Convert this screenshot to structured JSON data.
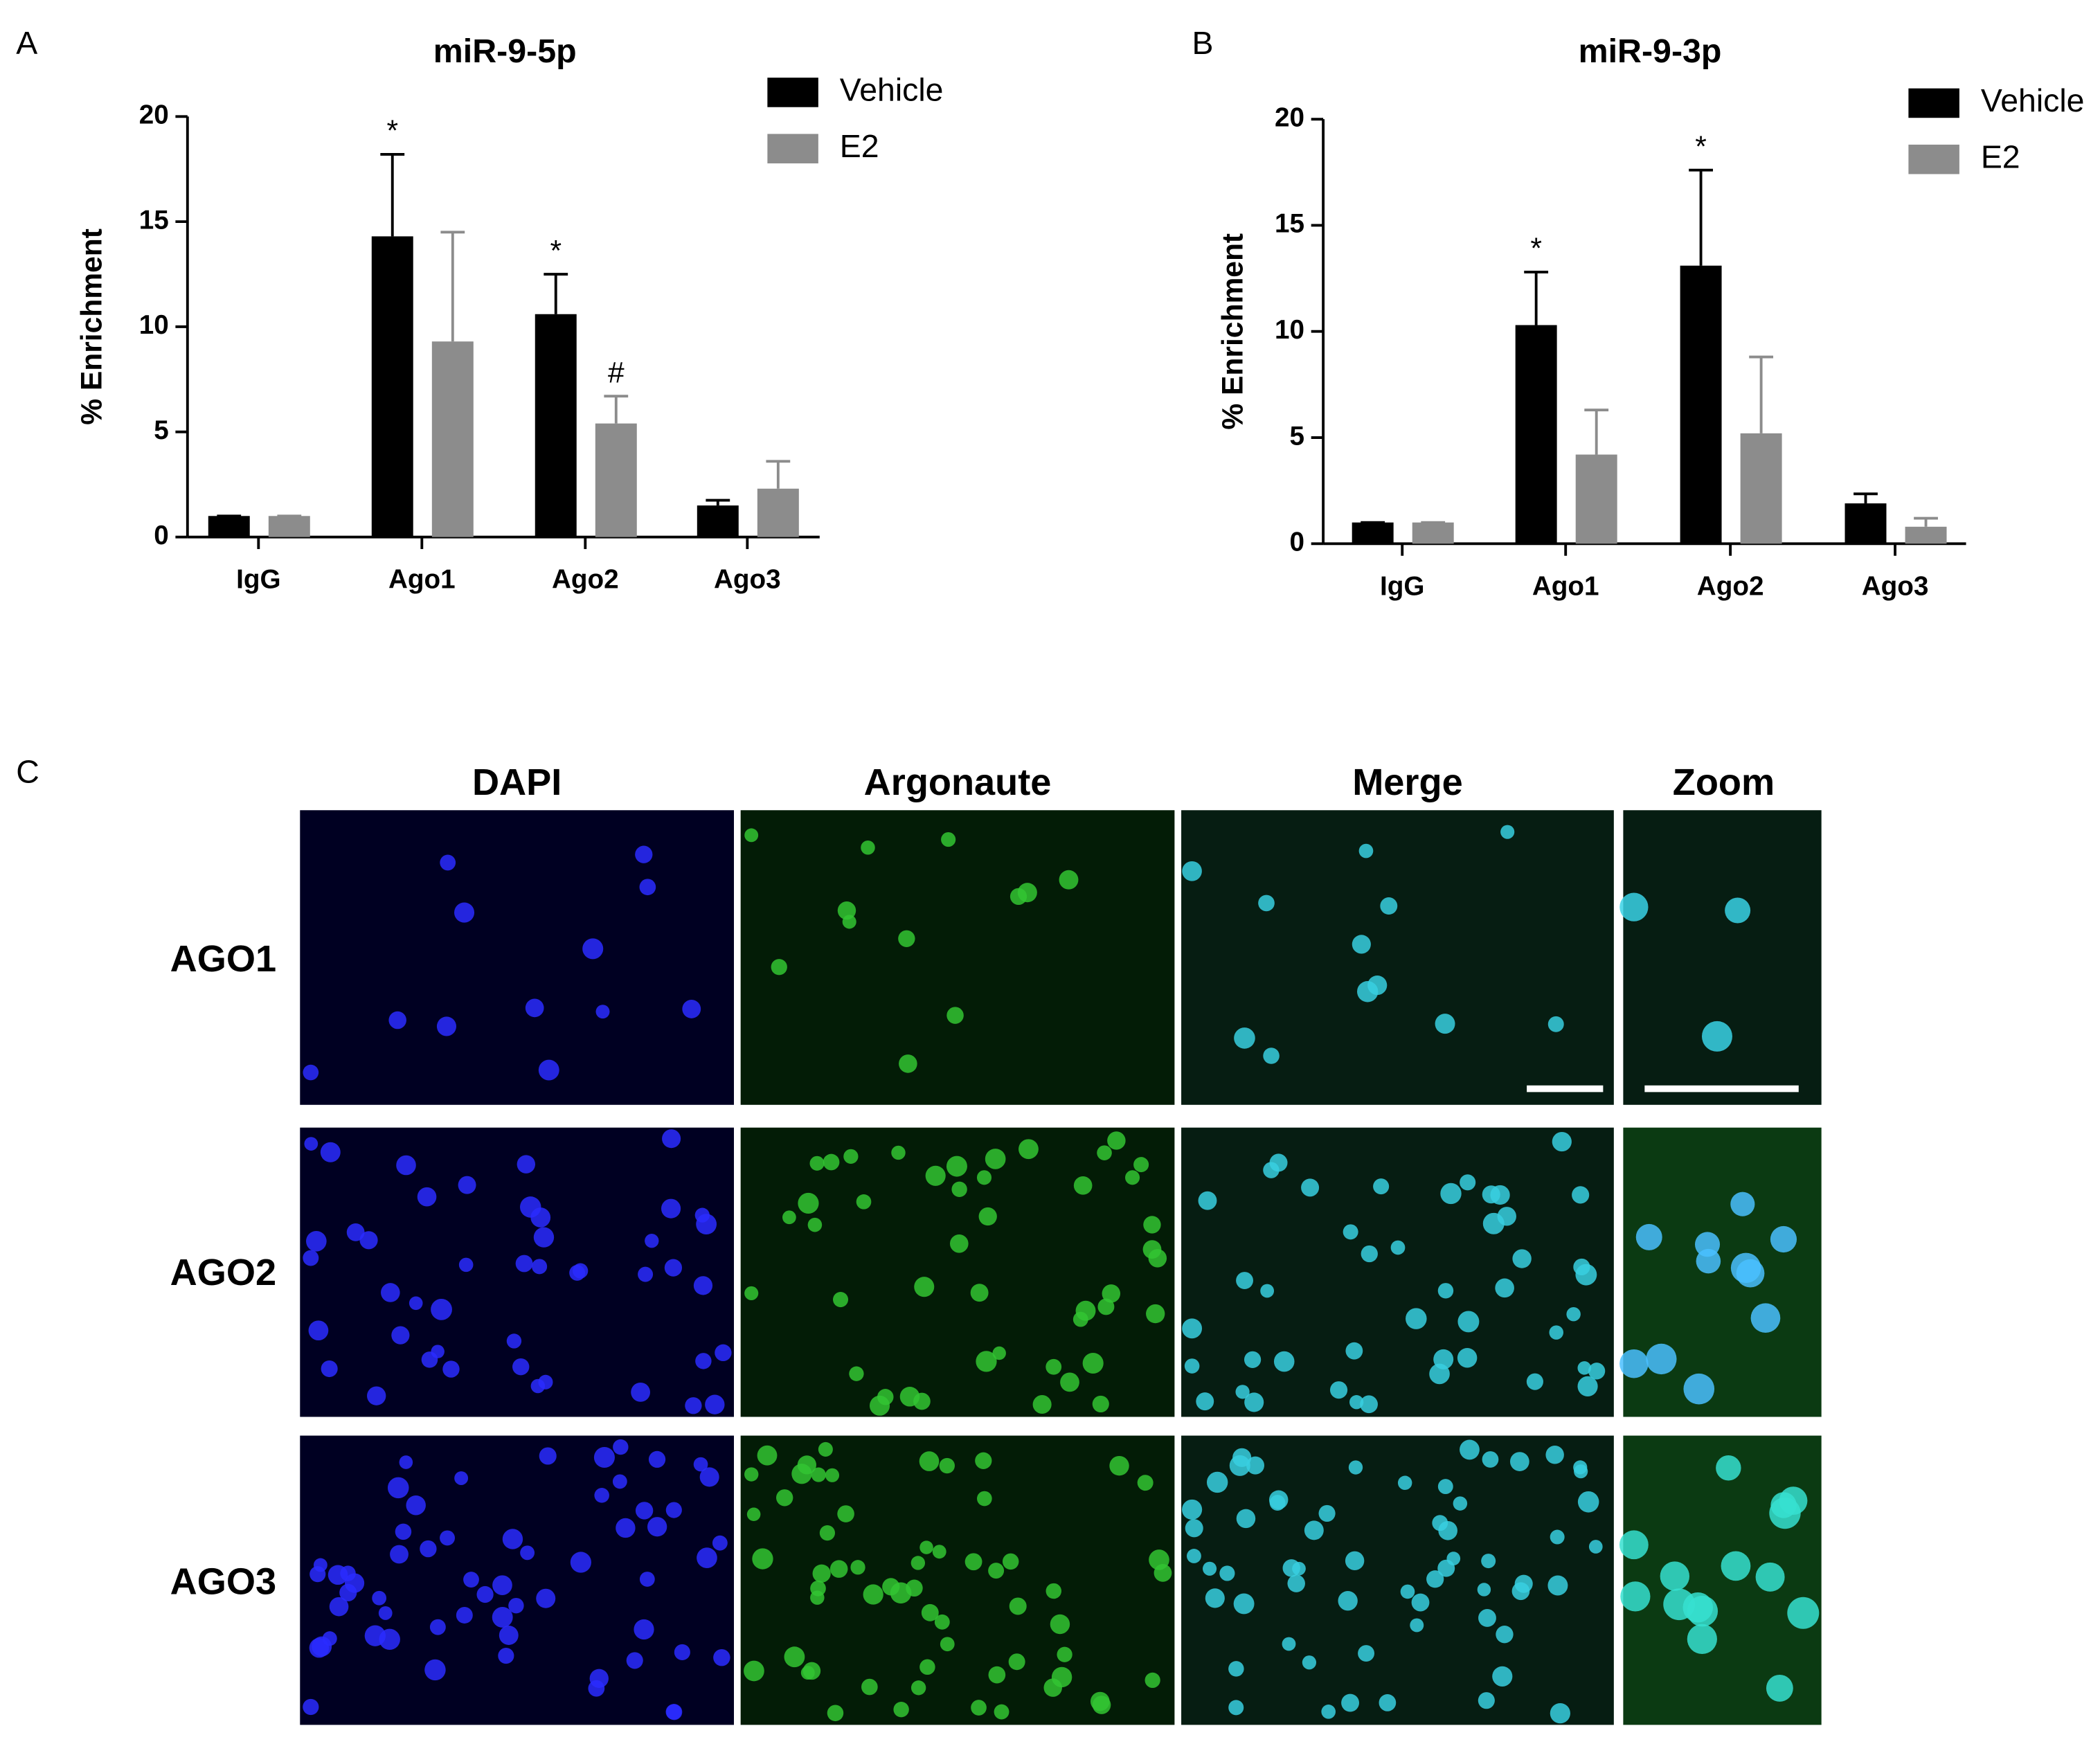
{
  "chart_data": [
    {
      "type": "bar",
      "panel_label": "A",
      "title": "miR-9-5p",
      "y_label": "% Enrichment",
      "categories": [
        "IgG",
        "Ago1",
        "Ago2",
        "Ago3"
      ],
      "series": [
        {
          "name": "Vehicle",
          "color": "#000000",
          "values": [
            1,
            14.3,
            10.6,
            1.5
          ],
          "errors": [
            0,
            3.9,
            1.9,
            0.25
          ],
          "markers": [
            null,
            "*",
            "*",
            null
          ]
        },
        {
          "name": "E2",
          "color": "#8c8c8c",
          "values": [
            1,
            9.3,
            5.4,
            2.3
          ],
          "errors": [
            0,
            5.2,
            1.3,
            1.3
          ],
          "markers": [
            null,
            null,
            "#",
            null
          ]
        }
      ],
      "ylim": [
        0,
        20
      ],
      "yticks": [
        0,
        5,
        10,
        15,
        20
      ],
      "legend": "upper right"
    },
    {
      "type": "bar",
      "panel_label": "B",
      "title": "miR-9-3p",
      "y_label": "% Enrichment",
      "categories": [
        "IgG",
        "Ago1",
        "Ago2",
        "Ago3"
      ],
      "series": [
        {
          "name": "Vehicle",
          "color": "#000000",
          "values": [
            1,
            10.3,
            13.1,
            1.9
          ],
          "errors": [
            0,
            2.5,
            4.5,
            0.45
          ],
          "markers": [
            null,
            "*",
            "*",
            null
          ]
        },
        {
          "name": "E2",
          "color": "#8c8c8c",
          "values": [
            1,
            4.2,
            5.2,
            0.8
          ],
          "errors": [
            0,
            2.1,
            3.6,
            0.4
          ],
          "markers": [
            null,
            null,
            null,
            null
          ]
        }
      ],
      "ylim": [
        0,
        20
      ],
      "yticks": [
        0,
        5,
        10,
        15,
        20
      ],
      "legend": "upper right"
    }
  ],
  "panel_c": {
    "label": "C",
    "columns": [
      "DAPI",
      "Argonaute",
      "Merge",
      "Zoom"
    ],
    "rows": [
      "AGO1",
      "AGO2",
      "AGO3"
    ]
  }
}
